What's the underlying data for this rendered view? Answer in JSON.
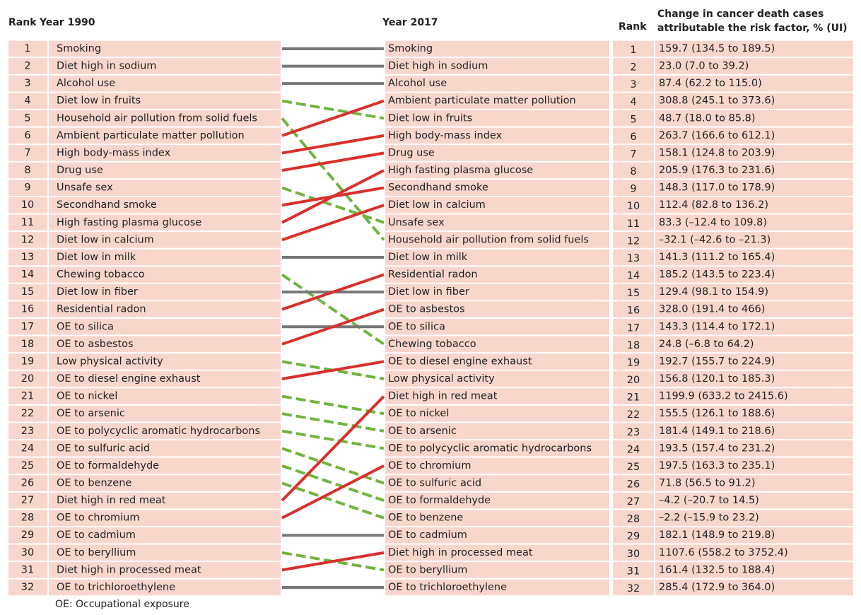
{
  "header": {
    "rank_left": "Rank",
    "year_left": "Year 1990",
    "year_right": "Year 2017",
    "rank_right": "Rank",
    "change": [
      "Change in cancer death cases",
      "attributable the risk factor, % (UI)"
    ]
  },
  "rows_1990": [
    {
      "rank": 1,
      "factor": "Smoking"
    },
    {
      "rank": 2,
      "factor": "Diet high in sodium"
    },
    {
      "rank": 3,
      "factor": "Alcohol use"
    },
    {
      "rank": 4,
      "factor": "Diet low in fruits"
    },
    {
      "rank": 5,
      "factor": "Household air pollution from solid fuels"
    },
    {
      "rank": 6,
      "factor": "Ambient particulate matter pollution"
    },
    {
      "rank": 7,
      "factor": "High body-mass index"
    },
    {
      "rank": 8,
      "factor": "Drug use"
    },
    {
      "rank": 9,
      "factor": "Unsafe sex"
    },
    {
      "rank": 10,
      "factor": "Secondhand smoke"
    },
    {
      "rank": 11,
      "factor": "High fasting plasma glucose"
    },
    {
      "rank": 12,
      "factor": "Diet low in calcium"
    },
    {
      "rank": 13,
      "factor": "Diet low in milk"
    },
    {
      "rank": 14,
      "factor": "Chewing tobacco"
    },
    {
      "rank": 15,
      "factor": "Diet low in fiber"
    },
    {
      "rank": 16,
      "factor": "Residential radon"
    },
    {
      "rank": 17,
      "factor": "OE to silica"
    },
    {
      "rank": 18,
      "factor": "OE to asbestos"
    },
    {
      "rank": 19,
      "factor": "Low physical activity"
    },
    {
      "rank": 20,
      "factor": "OE to diesel engine exhaust"
    },
    {
      "rank": 21,
      "factor": "OE to nickel"
    },
    {
      "rank": 22,
      "factor": "OE to arsenic"
    },
    {
      "rank": 23,
      "factor": "OE to polycyclic aromatic hydrocarbons"
    },
    {
      "rank": 24,
      "factor": "OE to sulfuric acid"
    },
    {
      "rank": 25,
      "factor": "OE to formaldehyde"
    },
    {
      "rank": 26,
      "factor": "OE to benzene"
    },
    {
      "rank": 27,
      "factor": "Diet high in red meat"
    },
    {
      "rank": 28,
      "factor": "OE to chromium"
    },
    {
      "rank": 29,
      "factor": "OE to cadmium"
    },
    {
      "rank": 30,
      "factor": "OE to beryllium"
    },
    {
      "rank": 31,
      "factor": "Diet high in processed meat"
    },
    {
      "rank": 32,
      "factor": "OE to trichloroethylene"
    }
  ],
  "rows_2017": [
    {
      "factor": "Smoking",
      "rank": 1,
      "change": "159.7 (134.5 to 189.5)"
    },
    {
      "factor": "Diet high in sodium",
      "rank": 2,
      "change": "23.0 (7.0 to 39.2)"
    },
    {
      "factor": "Alcohol use",
      "rank": 3,
      "change": "87.4 (62.2 to 115.0)"
    },
    {
      "factor": "Ambient particulate matter pollution",
      "rank": 4,
      "change": "308.8 (245.1 to 373.6)"
    },
    {
      "factor": "Diet low in fruits",
      "rank": 5,
      "change": "48.7 (18.0 to 85.8)"
    },
    {
      "factor": "High body-mass index",
      "rank": 6,
      "change": "263.7 (166.6 to 612.1)"
    },
    {
      "factor": "Drug use",
      "rank": 7,
      "change": "158.1 (124.8 to 203.9)"
    },
    {
      "factor": "High fasting plasma glucose",
      "rank": 8,
      "change": "205.9 (176.3 to 231.6)"
    },
    {
      "factor": "Secondhand smoke",
      "rank": 9,
      "change": "148.3 (117.0 to 178.9)"
    },
    {
      "factor": "Diet low in calcium",
      "rank": 10,
      "change": "112.4 (82.8 to 136.2)"
    },
    {
      "factor": "Unsafe sex",
      "rank": 11,
      "change": "83.3 (–12.4 to 109.8)"
    },
    {
      "factor": "Household air pollution from solid fuels",
      "rank": 12,
      "change": "–32.1 (–42.6 to –21.3)"
    },
    {
      "factor": "Diet low in milk",
      "rank": 13,
      "change": "141.3 (111.2 to 165.4)"
    },
    {
      "factor": "Residential radon",
      "rank": 14,
      "change": "185.2 (143.5 to 223.4)"
    },
    {
      "factor": "Diet low in fiber",
      "rank": 15,
      "change": "129.4 (98.1 to 154.9)"
    },
    {
      "factor": "OE to asbestos",
      "rank": 16,
      "change": "328.0 (191.4 to 466)"
    },
    {
      "factor": "OE to silica",
      "rank": 17,
      "change": "143.3 (114.4 to 172.1)"
    },
    {
      "factor": "Chewing tobacco",
      "rank": 18,
      "change": "24.8 (–6.8 to 64.2)"
    },
    {
      "factor": "OE to diesel engine exhaust",
      "rank": 19,
      "change": "192.7 (155.7 to 224.9)"
    },
    {
      "factor": "Low physical activity",
      "rank": 20,
      "change": "156.8 (120.1 to 185.3)"
    },
    {
      "factor": "Diet high in red meat",
      "rank": 21,
      "change": "1199.9 (633.2 to 2415.6)"
    },
    {
      "factor": "OE to nickel",
      "rank": 22,
      "change": "155.5 (126.1 to 188.6)"
    },
    {
      "factor": "OE to arsenic",
      "rank": 23,
      "change": "181.4 (149.1 to 218.6)"
    },
    {
      "factor": "OE to polycyclic aromatic hydrocarbons",
      "rank": 24,
      "change": "193.5 (157.4 to 231.2)"
    },
    {
      "factor": "OE to chromium",
      "rank": 25,
      "change": "197.5 (163.3 to 235.1)"
    },
    {
      "factor": "OE to sulfuric acid",
      "rank": 26,
      "change": "71.8 (56.5 to 91.2)"
    },
    {
      "factor": "OE to formaldehyde",
      "rank": 27,
      "change": "–4.2 (–20.7 to 14.5)"
    },
    {
      "factor": "OE to benzene",
      "rank": 28,
      "change": "–2.2 (–15.9 to 23.2)"
    },
    {
      "factor": "OE to cadmium",
      "rank": 29,
      "change": "182.1 (148.9 to 219.8)"
    },
    {
      "factor": "Diet high in processed meat",
      "rank": 30,
      "change": "1107.6 (558.2 to 3752.4)"
    },
    {
      "factor": "OE to beryllium",
      "rank": 31,
      "change": "161.4 (132.5 to 188.4)"
    },
    {
      "factor": "OE to trichloroethylene",
      "rank": 32,
      "change": "285.4 (172.9 to 364.0)"
    }
  ],
  "footnote": "OE: Occupational exposure"
}
